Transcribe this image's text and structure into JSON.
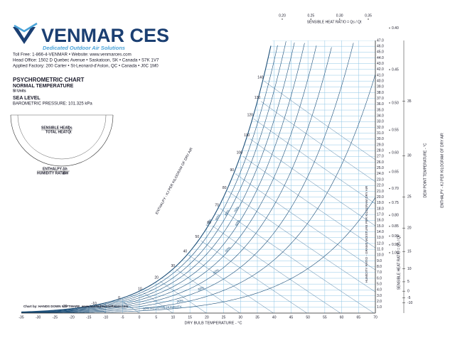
{
  "header": {
    "brand": "VENMAR CES",
    "tagline": "Dedicated Outdoor Air Solutions",
    "contact": [
      "Toll Free: 1-866-4-VENMAR • Website: www.venmarces.com",
      "Head Office: 1502 D Quebec Avenue • Saskatoon, SK • Canada • S7K 1V7",
      "Applied Factory: 200 Carter • St-Leonard-d'Aston, QC • Canada • J0C 1M0"
    ],
    "title": "PSYCHROMETRIC CHART",
    "subtitle": "NORMAL TEMPERATURE",
    "units": "SI Units",
    "altitude": "SEA LEVEL",
    "pressure": {
      "value": 101.325,
      "label": "BAROMETRIC PRESSURE: 101.325 kPa"
    }
  },
  "protractor": {
    "shr_label": "SENSIBLE HEAT",
    "total_label": "TOTAL HEAT",
    "ratio_symbol": "Qs",
    "total_symbol": "Qt",
    "enthalpy_label": "ENTHALPY",
    "humidity_label": "HUMIDITY RATIO",
    "dh": "Δh",
    "dw": "ΔW"
  },
  "chart_data": {
    "type": "psychrometric",
    "xlabel": "DRY BULB TEMPERATURE - °C",
    "ylabel": "HUMIDITY RATIO - GRAMS MOISTURE PER KILOGRAM DRY AIR",
    "enthalpy_label": "ENTHALPY - KJ PER KILOGRAM OF DRY AIR",
    "dewpoint_label": "DEW POINT TEMPERATURE - °C",
    "shr_label": "SENSIBLE HEAT RATIO = Qs / Qt",
    "footer": "Chart by: HANDS DOWN SOFTWARE, www.handsdownsoftware.com",
    "xlim": [
      -35,
      70
    ],
    "xticks": [
      -35,
      -30,
      -25,
      -20,
      -15,
      -10,
      -5,
      0,
      5,
      10,
      15,
      20,
      25,
      30,
      35,
      40,
      45,
      50,
      55,
      60,
      65,
      70
    ],
    "ylim": [
      0,
      47
    ],
    "yticks": [
      {
        "value": 1,
        "label": "1.0"
      },
      {
        "value": 2,
        "label": "2.0"
      },
      {
        "value": 3,
        "label": "3.0"
      },
      {
        "value": 4,
        "label": "4.0"
      },
      {
        "value": 5,
        "label": "5.0"
      },
      {
        "value": 6,
        "label": "6.0"
      },
      {
        "value": 7,
        "label": "7.0"
      },
      {
        "value": 8,
        "label": "8.0"
      },
      {
        "value": 9,
        "label": "9.0"
      },
      {
        "value": 10,
        "label": "10.0"
      },
      {
        "value": 11,
        "label": "11.0"
      },
      {
        "value": 12,
        "label": "12.0"
      },
      {
        "value": 13,
        "label": "13.0"
      },
      {
        "value": 14,
        "label": "14.0"
      },
      {
        "value": 15,
        "label": "15.0"
      },
      {
        "value": 16,
        "label": "16.0"
      },
      {
        "value": 17,
        "label": "17.0"
      },
      {
        "value": 18,
        "label": "18.0"
      },
      {
        "value": 19,
        "label": "19.0"
      },
      {
        "value": 20,
        "label": "20.0"
      },
      {
        "value": 21,
        "label": "21.0"
      },
      {
        "value": 22,
        "label": "22.0"
      },
      {
        "value": 23,
        "label": "23.0"
      },
      {
        "value": 24,
        "label": "24.0"
      },
      {
        "value": 25,
        "label": "25.0"
      },
      {
        "value": 26,
        "label": "26.0"
      },
      {
        "value": 27,
        "label": "27.0"
      },
      {
        "value": 28,
        "label": "28.0"
      },
      {
        "value": 29,
        "label": "29.0"
      },
      {
        "value": 30,
        "label": "30.0"
      },
      {
        "value": 31,
        "label": "31.0"
      },
      {
        "value": 32,
        "label": "32.0"
      },
      {
        "value": 33,
        "label": "33.0"
      },
      {
        "value": 34,
        "label": "34.0"
      },
      {
        "value": 35,
        "label": "35.0"
      },
      {
        "value": 36,
        "label": "36.0"
      },
      {
        "value": 37,
        "label": "37.0"
      },
      {
        "value": 38,
        "label": "38.0"
      },
      {
        "value": 39,
        "label": "39.0"
      },
      {
        "value": 40,
        "label": "40.0"
      },
      {
        "value": 41,
        "label": "41.0"
      },
      {
        "value": 42,
        "label": "42.0"
      },
      {
        "value": 43,
        "label": "43.0"
      },
      {
        "value": 44,
        "label": "44.0"
      },
      {
        "value": 45,
        "label": "45.0"
      },
      {
        "value": 46,
        "label": "46.0"
      },
      {
        "value": 47,
        "label": "47.0"
      }
    ],
    "rh_lines": [
      {
        "value": 10,
        "label": "10% RELATIVE HUMIDITY"
      },
      {
        "value": 20,
        "label": "20%"
      },
      {
        "value": 30,
        "label": "30%"
      },
      {
        "value": 40,
        "label": "40%"
      },
      {
        "value": 50,
        "label": "50%"
      },
      {
        "value": 60,
        "label": "60%"
      },
      {
        "value": 70,
        "label": "70%"
      },
      {
        "value": 80,
        "label": "80%"
      },
      {
        "value": 90,
        "label": "90%"
      },
      {
        "value": 100,
        "label": "100%"
      }
    ],
    "enthalpy_lines": [
      -20,
      -10,
      0,
      10,
      20,
      30,
      40,
      50,
      60,
      70,
      80,
      90,
      100,
      110,
      120,
      130,
      140
    ],
    "dewpoint_ticks": [
      -10,
      -5,
      0,
      5,
      10,
      15,
      20,
      25,
      30,
      35
    ],
    "shr_ticks": [
      {
        "value": 0.2,
        "label": "0.20"
      },
      0.25,
      {
        "value": 0.3,
        "label": "0.30"
      },
      0.35,
      {
        "value": 0.4,
        "label": "0.40"
      },
      0.45,
      {
        "value": 0.5,
        "label": "0.50"
      },
      0.55,
      {
        "value": 0.6,
        "label": "0.60"
      },
      0.65,
      {
        "value": 0.7,
        "label": "0.70"
      },
      0.75,
      {
        "value": 0.8,
        "label": "0.80"
      },
      0.85,
      {
        "value": 0.9,
        "label": "0.90"
      },
      0.95,
      {
        "value": 1,
        "label": "1.00"
      }
    ],
    "grid": true,
    "grid_color": "#8fc6e6",
    "curve_color": "#1d4f78"
  }
}
